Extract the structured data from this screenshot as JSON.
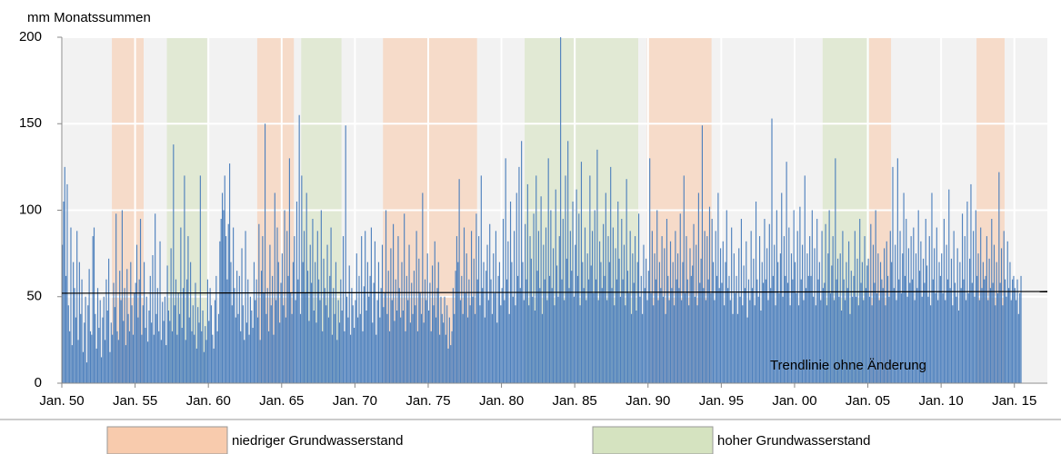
{
  "chart_data": {
    "type": "bar",
    "ylabel": "mm Monatssummen",
    "color": "#4f81bd",
    "grid": true,
    "xlim": [
      0,
      807
    ],
    "ylim": [
      0,
      200
    ],
    "yticks": [
      0,
      50,
      100,
      150,
      200
    ],
    "xticks": [
      {
        "value": 0,
        "label": "Jan. 50"
      },
      {
        "value": 60,
        "label": "Jan. 55"
      },
      {
        "value": 120,
        "label": "Jan. 60"
      },
      {
        "value": 180,
        "label": "Jan. 65"
      },
      {
        "value": 240,
        "label": "Jan. 70"
      },
      {
        "value": 300,
        "label": "Jan. 75"
      },
      {
        "value": 360,
        "label": "Jan. 80"
      },
      {
        "value": 420,
        "label": "Jan. 85"
      },
      {
        "value": 480,
        "label": "Jan. 90"
      },
      {
        "value": 540,
        "label": "Jan. 95"
      },
      {
        "value": 600,
        "label": "Jan. 00"
      },
      {
        "value": 660,
        "label": "Jan. 05"
      },
      {
        "value": 720,
        "label": "Jan. 10"
      },
      {
        "value": 780,
        "label": "Jan. 15"
      }
    ],
    "bands": [
      {
        "name": "niedriger Grundwasserstand",
        "color": "#f8cbad",
        "periods": [
          [
            41,
            67
          ],
          [
            160,
            190
          ],
          [
            263,
            340
          ],
          [
            479,
            532
          ],
          [
            661,
            679
          ],
          [
            749,
            772
          ]
        ]
      },
      {
        "name": "hoher Grundwasserstand",
        "color": "#d5e3c0",
        "periods": [
          [
            86,
            119
          ],
          [
            196,
            229
          ],
          [
            379,
            472
          ],
          [
            623,
            661
          ]
        ]
      }
    ],
    "trendline": {
      "label": "Trendlinie ohne Änderung",
      "values": [
        52,
        53
      ],
      "color": "#000000"
    },
    "values": [
      80,
      105,
      125,
      62,
      115,
      45,
      30,
      90,
      22,
      70,
      55,
      38,
      88,
      25,
      70,
      40,
      60,
      18,
      35,
      50,
      12,
      45,
      66,
      30,
      28,
      85,
      90,
      40,
      20,
      55,
      32,
      48,
      15,
      38,
      50,
      25,
      60,
      42,
      72,
      18,
      35,
      28,
      58,
      44,
      98,
      30,
      25,
      65,
      48,
      100,
      36,
      55,
      22,
      66,
      40,
      30,
      70,
      45,
      28,
      52,
      58,
      80,
      38,
      60,
      95,
      28,
      45,
      70,
      32,
      50,
      24,
      42,
      62,
      35,
      74,
      28,
      98,
      40,
      55,
      30,
      82,
      25,
      47,
      36,
      50,
      22,
      68,
      42,
      36,
      78,
      30,
      138,
      45,
      60,
      28,
      52,
      40,
      90,
      32,
      55,
      120,
      25,
      60,
      85,
      38,
      70,
      30,
      45,
      28,
      58,
      20,
      44,
      35,
      120,
      30,
      42,
      18,
      33,
      25,
      60,
      36,
      55,
      45,
      28,
      20,
      48,
      62,
      30,
      40,
      82,
      95,
      110,
      100,
      120,
      85,
      60,
      92,
      127,
      70,
      45,
      90,
      55,
      38,
      65,
      40,
      62,
      30,
      78,
      45,
      25,
      88,
      35,
      60,
      28,
      50,
      42,
      32,
      70,
      48,
      60,
      38,
      92,
      25,
      65,
      85,
      52,
      150,
      40,
      55,
      30,
      80,
      45,
      62,
      28,
      110,
      48,
      90,
      70,
      35,
      58,
      75,
      45,
      100,
      38,
      88,
      62,
      130,
      52,
      40,
      70,
      85,
      48,
      105,
      60,
      155,
      40,
      120,
      70,
      88,
      52,
      110,
      65,
      36,
      80,
      58,
      95,
      42,
      70,
      35,
      88,
      60,
      48,
      100,
      30,
      72,
      55,
      45,
      80,
      38,
      62,
      90,
      28,
      55,
      40,
      70,
      25,
      48,
      35,
      60,
      42,
      85,
      30,
      149,
      50,
      38,
      68,
      28,
      55,
      45,
      32,
      48,
      75,
      38,
      62,
      40,
      85,
      30,
      56,
      88,
      42,
      70,
      50,
      62,
      90,
      35,
      58,
      82,
      28,
      48,
      70,
      38,
      55,
      80,
      44,
      52,
      100,
      40,
      65,
      30,
      78,
      48,
      92,
      36,
      60,
      42,
      85,
      55,
      38,
      70,
      42,
      98,
      30,
      62,
      48,
      80,
      35,
      58,
      40,
      65,
      45,
      88,
      30,
      72,
      52,
      40,
      110,
      35,
      60,
      48,
      75,
      42,
      58,
      30,
      68,
      45,
      82,
      38,
      55,
      70,
      28,
      50,
      40,
      35,
      50,
      28,
      45,
      20,
      38,
      22,
      30,
      55,
      40,
      65,
      85,
      70,
      118,
      48,
      62,
      40,
      90,
      52,
      75,
      38,
      60,
      45,
      88,
      50,
      72,
      40,
      98,
      60,
      85,
      45,
      120,
      55,
      70,
      38,
      65,
      80,
      48,
      92,
      60,
      40,
      75,
      52,
      88,
      35,
      62,
      70,
      45,
      55,
      95,
      48,
      130,
      60,
      82,
      40,
      105,
      70,
      50,
      88,
      45,
      110,
      62,
      125,
      55,
      140,
      70,
      48,
      92,
      60,
      115,
      45,
      85,
      72,
      50,
      98,
      42,
      120,
      65,
      88,
      55,
      108,
      40,
      80,
      60,
      90,
      48,
      130,
      62,
      100,
      55,
      78,
      45,
      112,
      68,
      50,
      85,
      200,
      60,
      95,
      48,
      120,
      72,
      140,
      55,
      88,
      65,
      105,
      50,
      80,
      112,
      62,
      98,
      45,
      128,
      70,
      55,
      90,
      48,
      75,
      60,
      120,
      68,
      88,
      52,
      100,
      60,
      135,
      48,
      82,
      70,
      55,
      92,
      62,
      110,
      48,
      85,
      70,
      125,
      55,
      90,
      45,
      78,
      60,
      105,
      72,
      50,
      95,
      60,
      80,
      45,
      118,
      65,
      52,
      88,
      40,
      75,
      58,
      85,
      42,
      70,
      98,
      50,
      62,
      40,
      80,
      55,
      72,
      48,
      65,
      130,
      52,
      88,
      45,
      75,
      60,
      100,
      48,
      70,
      55,
      85,
      50,
      78,
      40,
      95,
      62,
      48,
      82,
      55,
      70,
      45,
      88,
      60,
      75,
      55,
      98,
      48,
      70,
      120,
      52,
      85,
      60,
      45,
      78,
      62,
      68,
      92,
      50,
      80,
      45,
      110,
      58,
      72,
      149,
      55,
      88,
      48,
      85,
      60,
      102,
      52,
      95,
      70,
      48,
      88,
      62,
      110,
      55,
      78,
      58,
      82,
      45,
      70,
      100,
      55,
      62,
      48,
      90,
      40,
      75,
      52,
      62,
      40,
      78,
      50,
      95,
      45,
      68,
      55,
      82,
      38,
      60,
      48,
      88,
      55,
      72,
      45,
      105,
      60,
      50,
      85,
      42,
      70,
      58,
      95,
      60,
      78,
      48,
      92,
      55,
      153,
      62,
      80,
      45,
      100,
      70,
      52,
      75,
      110,
      50,
      85,
      62,
      128,
      58,
      90,
      45,
      75,
      60,
      100,
      70,
      52,
      88,
      45,
      102,
      60,
      80,
      48,
      120,
      55,
      75,
      62,
      85,
      62,
      100,
      50,
      78,
      45,
      95,
      60,
      70,
      48,
      88,
      55,
      58,
      92,
      45,
      75,
      100,
      52,
      68,
      85,
      48,
      130,
      60,
      72,
      50,
      75,
      42,
      88,
      60,
      48,
      70,
      55,
      82,
      40,
      65,
      50,
      62,
      88,
      50,
      72,
      45,
      95,
      58,
      70,
      48,
      85,
      55,
      68,
      72,
      50,
      92,
      45,
      80,
      58,
      100,
      52,
      75,
      48,
      70,
      60,
      55,
      78,
      45,
      82,
      62,
      50,
      88,
      70,
      125,
      55,
      80,
      48,
      130,
      60,
      88,
      52,
      75,
      110,
      62,
      95,
      50,
      78,
      58,
      85,
      60,
      90,
      48,
      75,
      55,
      100,
      65,
      82,
      50,
      72,
      58,
      95,
      68,
      50,
      85,
      45,
      110,
      60,
      78,
      52,
      90,
      48,
      70,
      62,
      75,
      52,
      95,
      48,
      80,
      60,
      112,
      55,
      72,
      45,
      88,
      58,
      50,
      78,
      42,
      70,
      55,
      98,
      60,
      85,
      48,
      105,
      52,
      72,
      115,
      58,
      88,
      50,
      100,
      62,
      75,
      48,
      90,
      55,
      70,
      60,
      62,
      85,
      48,
      72,
      55,
      95,
      58,
      80,
      45,
      70,
      52,
      122,
      58,
      78,
      45,
      88,
      60,
      50,
      82,
      55,
      70,
      48,
      60,
      62,
      55,
      48,
      60,
      40,
      52,
      62
    ]
  }
}
